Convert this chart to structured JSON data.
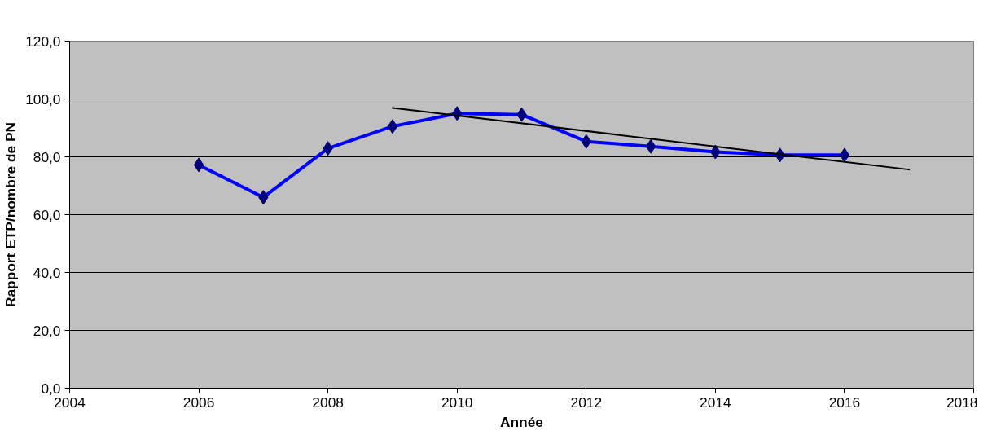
{
  "chart_data": {
    "type": "line",
    "xlabel": "Année",
    "ylabel": "Rapport ETP/nombre de PN",
    "x": [
      2006,
      2007,
      2008,
      2009,
      2010,
      2011,
      2012,
      2013,
      2014,
      2015,
      2016
    ],
    "series": [
      {
        "color": "#0000ff",
        "values": [
          77.2,
          66.0,
          82.9,
          90.5,
          95.0,
          94.6,
          85.3,
          83.6,
          81.7,
          80.6,
          80.6
        ],
        "marker": "diamond"
      },
      {
        "type": "line",
        "color": "#000000",
        "x": [
          2009,
          2017
        ],
        "values": [
          96.9,
          75.6
        ],
        "marker": "none"
      }
    ],
    "xlim": [
      2004,
      2018
    ],
    "xticks": [
      2004,
      2006,
      2008,
      2010,
      2012,
      2014,
      2016,
      2018
    ],
    "ylim": [
      0,
      120
    ],
    "yticks": [
      {
        "value": 0,
        "label": "0,0"
      },
      {
        "value": 20,
        "label": "20,0"
      },
      {
        "value": 40,
        "label": "40,0"
      },
      {
        "value": 60,
        "label": "60,0"
      },
      {
        "value": 80,
        "label": "80,0"
      },
      {
        "value": 100,
        "label": "100,0"
      },
      {
        "value": 120,
        "label": "120,0"
      }
    ],
    "grid": "y",
    "line_style": "solid"
  }
}
